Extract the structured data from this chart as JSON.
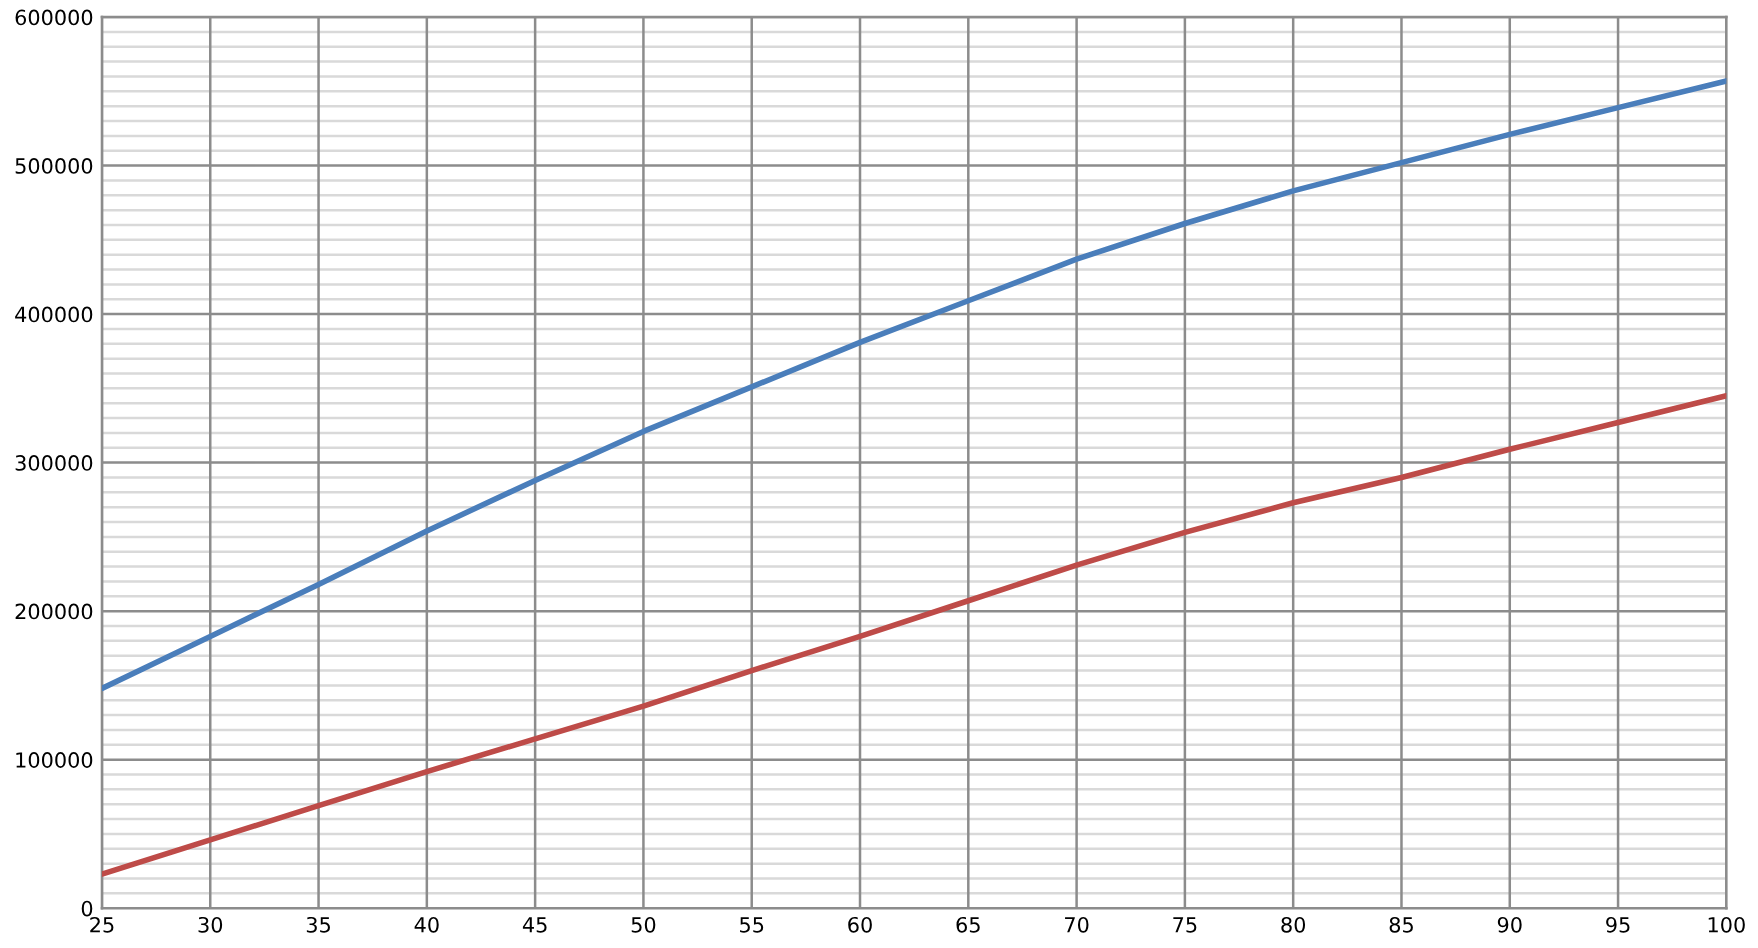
{
  "chart_data": {
    "type": "line",
    "x": [
      25,
      30,
      35,
      40,
      45,
      50,
      55,
      60,
      65,
      70,
      75,
      80,
      85,
      90,
      95,
      100
    ],
    "series": [
      {
        "color": "#4a7ebb",
        "values": [
          148000,
          183000,
          218000,
          254000,
          288000,
          321000,
          351000,
          381000,
          409000,
          437000,
          461000,
          483000,
          502000,
          521000,
          539000,
          557000
        ]
      },
      {
        "color": "#be4b48",
        "values": [
          23000,
          46000,
          69000,
          92000,
          114000,
          136000,
          160000,
          183000,
          207000,
          231000,
          253000,
          273000,
          290000,
          309000,
          327000,
          345000
        ]
      }
    ],
    "xlim": [
      25,
      100
    ],
    "xticks": [
      25,
      30,
      35,
      40,
      45,
      50,
      55,
      60,
      65,
      70,
      75,
      80,
      85,
      90,
      95,
      100
    ],
    "ylim": [
      0,
      600000
    ],
    "yticks": [
      0,
      {
        "value": 10000,
        "label": null
      },
      {
        "value": 20000,
        "label": null
      },
      {
        "value": 30000,
        "label": null
      },
      {
        "value": 40000,
        "label": null
      },
      {
        "value": 50000,
        "label": null
      },
      {
        "value": 60000,
        "label": null
      },
      {
        "value": 70000,
        "label": null
      },
      {
        "value": 80000,
        "label": null
      },
      {
        "value": 90000,
        "label": null
      },
      100000,
      {
        "value": 110000,
        "label": null
      },
      {
        "value": 120000,
        "label": null
      },
      {
        "value": 130000,
        "label": null
      },
      {
        "value": 140000,
        "label": null
      },
      {
        "value": 150000,
        "label": null
      },
      {
        "value": 160000,
        "label": null
      },
      {
        "value": 170000,
        "label": null
      },
      {
        "value": 180000,
        "label": null
      },
      {
        "value": 190000,
        "label": null
      },
      200000,
      {
        "value": 210000,
        "label": null
      },
      {
        "value": 220000,
        "label": null
      },
      {
        "value": 230000,
        "label": null
      },
      {
        "value": 240000,
        "label": null
      },
      {
        "value": 250000,
        "label": null
      },
      {
        "value": 260000,
        "label": null
      },
      {
        "value": 270000,
        "label": null
      },
      {
        "value": 280000,
        "label": null
      },
      {
        "value": 290000,
        "label": null
      },
      300000,
      {
        "value": 310000,
        "label": null
      },
      {
        "value": 320000,
        "label": null
      },
      {
        "value": 330000,
        "label": null
      },
      {
        "value": 340000,
        "label": null
      },
      {
        "value": 350000,
        "label": null
      },
      {
        "value": 360000,
        "label": null
      },
      {
        "value": 370000,
        "label": null
      },
      {
        "value": 380000,
        "label": null
      },
      {
        "value": 390000,
        "label": null
      },
      400000,
      {
        "value": 410000,
        "label": null
      },
      {
        "value": 420000,
        "label": null
      },
      {
        "value": 430000,
        "label": null
      },
      {
        "value": 440000,
        "label": null
      },
      {
        "value": 450000,
        "label": null
      },
      {
        "value": 460000,
        "label": null
      },
      {
        "value": 470000,
        "label": null
      },
      {
        "value": 480000,
        "label": null
      },
      {
        "value": 490000,
        "label": null
      },
      500000,
      {
        "value": 510000,
        "label": null
      },
      {
        "value": 520000,
        "label": null
      },
      {
        "value": 530000,
        "label": null
      },
      {
        "value": 540000,
        "label": null
      },
      {
        "value": 550000,
        "label": null
      },
      {
        "value": 560000,
        "label": null
      },
      {
        "value": 570000,
        "label": null
      },
      {
        "value": 580000,
        "label": null
      },
      {
        "value": 590000,
        "label": null
      },
      600000
    ],
    "grid": true,
    "line_style": "solid"
  }
}
